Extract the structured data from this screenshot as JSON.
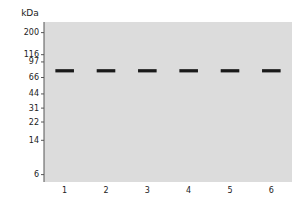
{
  "chart_data": {
    "type": "blot",
    "y_label": "kDa",
    "categories": [
      "1",
      "2",
      "3",
      "4",
      "5",
      "6"
    ],
    "values": [
      78,
      78,
      78,
      78,
      78,
      78
    ],
    "color": "#1a1a1a",
    "log": "y",
    "ylim": [
      5,
      260
    ],
    "yticks": [
      200,
      116,
      97,
      66,
      44,
      31,
      22,
      14,
      6
    ],
    "grid": false
  }
}
